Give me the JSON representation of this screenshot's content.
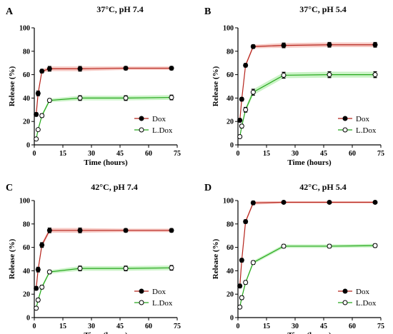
{
  "colors": {
    "dox_marker": "#000000",
    "dox_line": "#b5231b",
    "dox_band": "#f4b8b2",
    "ldox_marker_fill": "#ffffff",
    "ldox_line": "#26a81c",
    "ldox_band": "#b9efb4"
  },
  "chart_data": [
    {
      "type": "line",
      "panel": "A",
      "title": "37°C, pH 7.4",
      "xlabel": "Time (hours)",
      "ylabel": "Release (%)",
      "xlim": [
        0,
        75
      ],
      "ylim": [
        0,
        100
      ],
      "xticks": [
        0,
        15,
        30,
        45,
        60,
        75
      ],
      "yticks": [
        0,
        20,
        40,
        60,
        80,
        100
      ],
      "legend_position": "bottom-right",
      "series": [
        {
          "name": "Dox",
          "x": [
            1,
            2,
            4,
            8,
            24,
            48,
            72
          ],
          "y": [
            26,
            44,
            63,
            65,
            65,
            65.5,
            65.5
          ],
          "err": [
            1.5,
            2,
            1.5,
            2,
            2,
            1.5,
            1.5
          ]
        },
        {
          "name": "L.Dox",
          "x": [
            1,
            2,
            4,
            8,
            24,
            48,
            72
          ],
          "y": [
            5,
            13,
            25,
            38,
            40,
            40,
            40.5
          ],
          "err": [
            1,
            1,
            1.5,
            1.5,
            2,
            2,
            2
          ]
        }
      ]
    },
    {
      "type": "line",
      "panel": "B",
      "title": "37°C, pH 5.4",
      "xlabel": "Time (hours)",
      "ylabel": "Release (%)",
      "xlim": [
        0,
        75
      ],
      "ylim": [
        0,
        100
      ],
      "xticks": [
        0,
        15,
        30,
        45,
        60,
        75
      ],
      "yticks": [
        0,
        20,
        40,
        60,
        80,
        100
      ],
      "legend_position": "bottom-right",
      "series": [
        {
          "name": "Dox",
          "x": [
            1,
            2,
            4,
            8,
            24,
            48,
            72
          ],
          "y": [
            21,
            39,
            68,
            84,
            85,
            85.5,
            85.5
          ],
          "err": [
            1.5,
            1.5,
            1.5,
            1.5,
            2,
            2,
            2
          ]
        },
        {
          "name": "L.Dox",
          "x": [
            1,
            2,
            4,
            8,
            24,
            48,
            72
          ],
          "y": [
            7,
            16,
            30,
            45,
            59.5,
            60,
            60
          ],
          "err": [
            1,
            1.5,
            2,
            2.5,
            2.5,
            2.5,
            2.5
          ]
        }
      ]
    },
    {
      "type": "line",
      "panel": "C",
      "title": "42°C, pH 7.4",
      "xlabel": "Time (hours)",
      "ylabel": "Release (%)",
      "xlim": [
        0,
        75
      ],
      "ylim": [
        0,
        100
      ],
      "xticks": [
        0,
        15,
        30,
        45,
        60,
        75
      ],
      "yticks": [
        0,
        20,
        40,
        60,
        80,
        100
      ],
      "legend_position": "bottom-right",
      "series": [
        {
          "name": "Dox",
          "x": [
            1,
            2,
            4,
            8,
            24,
            48,
            72
          ],
          "y": [
            25,
            41,
            62,
            74.5,
            74.5,
            74.5,
            74.5
          ],
          "err": [
            1.5,
            2,
            2,
            2,
            2,
            1.5,
            1.5
          ]
        },
        {
          "name": "L.Dox",
          "x": [
            1,
            2,
            4,
            8,
            24,
            48,
            72
          ],
          "y": [
            8,
            15,
            26,
            39,
            42,
            42,
            42.5
          ],
          "err": [
            1,
            1.5,
            1.5,
            1.5,
            2,
            2,
            2
          ]
        }
      ]
    },
    {
      "type": "line",
      "panel": "D",
      "title": "42°C, pH 5.4",
      "xlabel": "Time (hours)",
      "ylabel": "Release (%)",
      "xlim": [
        0,
        75
      ],
      "ylim": [
        0,
        100
      ],
      "xticks": [
        0,
        15,
        30,
        45,
        60,
        75
      ],
      "yticks": [
        0,
        20,
        40,
        60,
        80,
        100
      ],
      "legend_position": "bottom-right",
      "series": [
        {
          "name": "Dox",
          "x": [
            1,
            2,
            4,
            8,
            24,
            48,
            72
          ],
          "y": [
            27,
            49,
            82,
            98,
            98.5,
            98.5,
            98.5
          ],
          "err": [
            1.5,
            1.5,
            1.5,
            1.5,
            1,
            1,
            1
          ]
        },
        {
          "name": "L.Dox",
          "x": [
            1,
            2,
            4,
            8,
            24,
            48,
            72
          ],
          "y": [
            9,
            17,
            30,
            47,
            61,
            61,
            61.5
          ],
          "err": [
            1,
            1.5,
            1.5,
            1.5,
            1.5,
            1.5,
            1.5
          ]
        }
      ]
    }
  ]
}
